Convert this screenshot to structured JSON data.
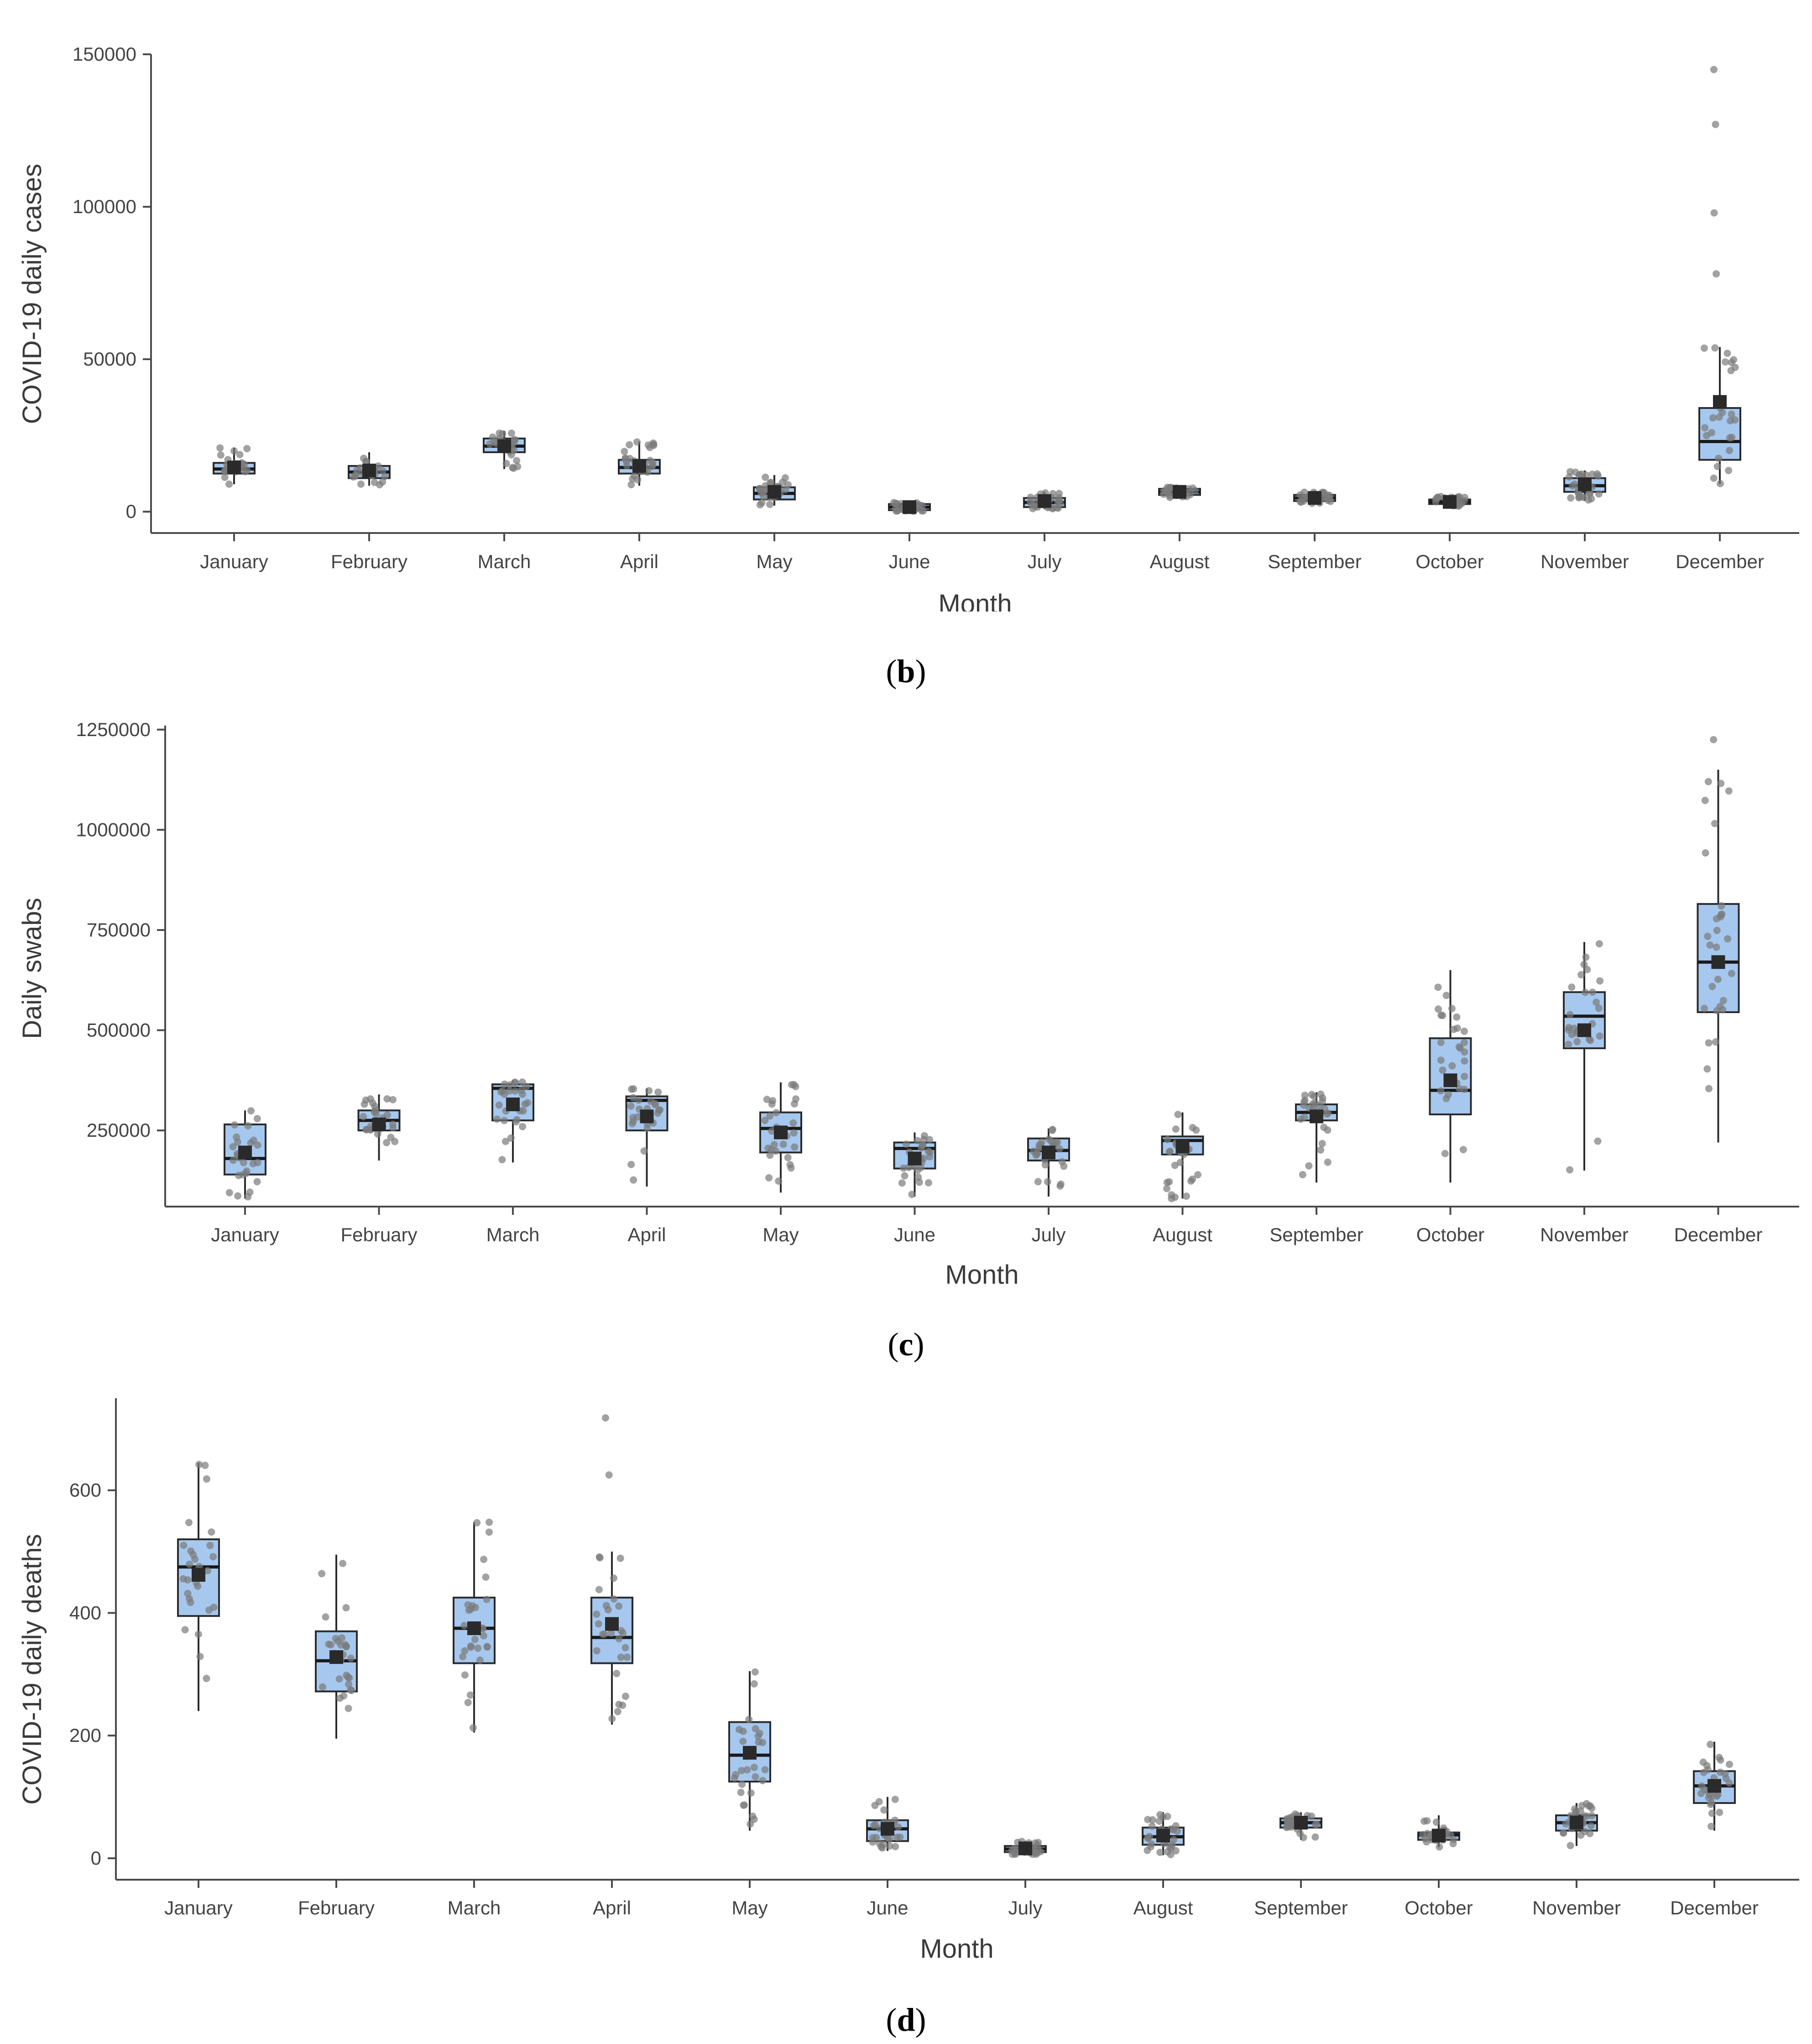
{
  "colors": {
    "box_fill": "#a6c8ef",
    "box_stroke": "#2b2b2b",
    "point": "#7a7a7a",
    "mean": "#2a2a2a",
    "axis": "#4a4a4a"
  },
  "captions": [
    {
      "open": "(",
      "letter": "b",
      "close": ")"
    },
    {
      "open": "(",
      "letter": "c",
      "close": ")"
    },
    {
      "open": "(",
      "letter": "d",
      "close": ")"
    }
  ],
  "chart_data": [
    {
      "type": "box",
      "panel": "b",
      "xlabel": "Month",
      "ylabel": "COVID-19 daily cases",
      "ylim": [
        -7000,
        150000
      ],
      "yticks": [
        0,
        50000,
        100000,
        150000
      ],
      "categories": [
        "January",
        "February",
        "March",
        "April",
        "May",
        "June",
        "July",
        "August",
        "September",
        "October",
        "November",
        "December"
      ],
      "boxes": [
        {
          "q1": 12500,
          "median": 14000,
          "q3": 16000,
          "lo": 9000,
          "hi": 21000,
          "mean": 14500
        },
        {
          "q1": 11000,
          "median": 13000,
          "q3": 15000,
          "lo": 8500,
          "hi": 19500,
          "mean": 13500
        },
        {
          "q1": 19500,
          "median": 21500,
          "q3": 24000,
          "lo": 14000,
          "hi": 26500,
          "mean": 21500
        },
        {
          "q1": 12500,
          "median": 14500,
          "q3": 17000,
          "lo": 8500,
          "hi": 23000,
          "mean": 15000
        },
        {
          "q1": 4000,
          "median": 6000,
          "q3": 8000,
          "lo": 2000,
          "hi": 12000,
          "mean": 6500
        },
        {
          "q1": 500,
          "median": 1500,
          "q3": 2500,
          "lo": 100,
          "hi": 3000,
          "mean": 1500
        },
        {
          "q1": 1500,
          "median": 3000,
          "q3": 4500,
          "lo": 800,
          "hi": 6500,
          "mean": 3500
        },
        {
          "q1": 5500,
          "median": 6500,
          "q3": 7500,
          "lo": 4500,
          "hi": 8000,
          "mean": 6500
        },
        {
          "q1": 3500,
          "median": 4500,
          "q3": 5500,
          "lo": 2500,
          "hi": 6500,
          "mean": 4500
        },
        {
          "q1": 2500,
          "median": 3200,
          "q3": 4000,
          "lo": 1800,
          "hi": 5000,
          "mean": 3200
        },
        {
          "q1": 6500,
          "median": 8500,
          "q3": 11000,
          "lo": 3500,
          "hi": 13500,
          "mean": 9000
        },
        {
          "q1": 17000,
          "median": 23000,
          "q3": 34000,
          "lo": 9000,
          "hi": 54000,
          "mean": 36000
        }
      ],
      "outliers": [
        [],
        [],
        [],
        [],
        [],
        [],
        [],
        [],
        [],
        [],
        [],
        [
          78000,
          98000,
          127000,
          145000
        ]
      ]
    },
    {
      "type": "box",
      "panel": "c",
      "xlabel": "Month",
      "ylabel": "Daily swabs",
      "ylim": [
        60000,
        1260000
      ],
      "yticks": [
        250000,
        500000,
        750000,
        1000000,
        1250000
      ],
      "categories": [
        "January",
        "February",
        "March",
        "April",
        "May",
        "June",
        "July",
        "August",
        "September",
        "October",
        "November",
        "December"
      ],
      "boxes": [
        {
          "q1": 140000,
          "median": 180000,
          "q3": 265000,
          "lo": 80000,
          "hi": 300000,
          "mean": 195000
        },
        {
          "q1": 250000,
          "median": 275000,
          "q3": 300000,
          "lo": 175000,
          "hi": 340000,
          "mean": 265000
        },
        {
          "q1": 275000,
          "median": 355000,
          "q3": 365000,
          "lo": 170000,
          "hi": 375000,
          "mean": 315000
        },
        {
          "q1": 250000,
          "median": 325000,
          "q3": 335000,
          "lo": 110000,
          "hi": 355000,
          "mean": 285000
        },
        {
          "q1": 195000,
          "median": 255000,
          "q3": 295000,
          "lo": 95000,
          "hi": 370000,
          "mean": 245000
        },
        {
          "q1": 155000,
          "median": 205000,
          "q3": 220000,
          "lo": 85000,
          "hi": 245000,
          "mean": 180000
        },
        {
          "q1": 175000,
          "median": 200000,
          "q3": 230000,
          "lo": 85000,
          "hi": 255000,
          "mean": 195000
        },
        {
          "q1": 190000,
          "median": 225000,
          "q3": 235000,
          "lo": 80000,
          "hi": 295000,
          "mean": 210000
        },
        {
          "q1": 275000,
          "median": 295000,
          "q3": 315000,
          "lo": 120000,
          "hi": 345000,
          "mean": 285000
        },
        {
          "q1": 290000,
          "median": 350000,
          "q3": 480000,
          "lo": 120000,
          "hi": 650000,
          "mean": 375000
        },
        {
          "q1": 455000,
          "median": 535000,
          "q3": 595000,
          "lo": 150000,
          "hi": 720000,
          "mean": 500000
        },
        {
          "q1": 545000,
          "median": 670000,
          "q3": 815000,
          "lo": 220000,
          "hi": 1150000,
          "mean": 670000
        }
      ],
      "outliers": [
        [],
        [],
        [],
        [],
        [],
        [],
        [],
        [],
        [],
        [],
        [],
        [
          1225000
        ]
      ]
    },
    {
      "type": "box",
      "panel": "d",
      "xlabel": "Month",
      "ylabel": "COVID-19 daily deaths",
      "ylim": [
        -35,
        750
      ],
      "yticks": [
        0,
        200,
        400,
        600
      ],
      "categories": [
        "January",
        "February",
        "March",
        "April",
        "May",
        "June",
        "July",
        "August",
        "September",
        "October",
        "November",
        "December"
      ],
      "boxes": [
        {
          "q1": 395,
          "median": 475,
          "q3": 520,
          "lo": 240,
          "hi": 645,
          "mean": 462
        },
        {
          "q1": 272,
          "median": 322,
          "q3": 370,
          "lo": 195,
          "hi": 495,
          "mean": 328
        },
        {
          "q1": 318,
          "median": 375,
          "q3": 425,
          "lo": 205,
          "hi": 548,
          "mean": 375
        },
        {
          "q1": 318,
          "median": 360,
          "q3": 425,
          "lo": 218,
          "hi": 500,
          "mean": 382
        },
        {
          "q1": 125,
          "median": 168,
          "q3": 222,
          "lo": 45,
          "hi": 305,
          "mean": 172
        },
        {
          "q1": 28,
          "median": 48,
          "q3": 62,
          "lo": 12,
          "hi": 100,
          "mean": 48
        },
        {
          "q1": 10,
          "median": 15,
          "q3": 20,
          "lo": 6,
          "hi": 28,
          "mean": 16
        },
        {
          "q1": 22,
          "median": 35,
          "q3": 50,
          "lo": 5,
          "hi": 75,
          "mean": 37
        },
        {
          "q1": 50,
          "median": 58,
          "q3": 65,
          "lo": 30,
          "hi": 75,
          "mean": 58
        },
        {
          "q1": 30,
          "median": 38,
          "q3": 42,
          "lo": 18,
          "hi": 70,
          "mean": 37
        },
        {
          "q1": 45,
          "median": 58,
          "q3": 70,
          "lo": 20,
          "hi": 90,
          "mean": 58
        },
        {
          "q1": 90,
          "median": 118,
          "q3": 142,
          "lo": 45,
          "hi": 190,
          "mean": 118
        }
      ],
      "outliers": [
        [],
        [],
        [],
        [
          625,
          718
        ],
        [],
        [],
        [],
        [],
        [],
        [],
        [],
        []
      ]
    }
  ]
}
